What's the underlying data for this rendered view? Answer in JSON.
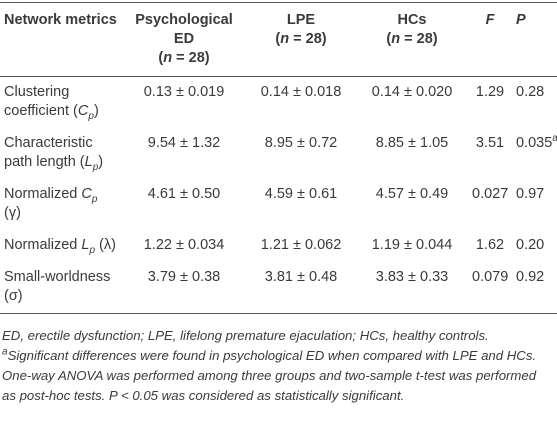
{
  "table": {
    "header": [
      [
        "Network metrics"
      ],
      [
        {
          "text": "Psychological ED",
          "block": true
        },
        "(",
        {
          "text": "n",
          "italic": true
        },
        " = 28)"
      ],
      [
        {
          "text": "LPE",
          "block": true
        },
        "(",
        {
          "text": "n",
          "italic": true
        },
        " = 28)"
      ],
      [
        {
          "text": "HCs",
          "block": true
        },
        "(",
        {
          "text": "n",
          "italic": true
        },
        " = 28)"
      ],
      [
        {
          "text": "F",
          "italic": true
        }
      ],
      [
        {
          "text": "P",
          "italic": true
        }
      ]
    ],
    "rows": [
      [
        [
          "Clustering coefficient (",
          {
            "text": "C",
            "italic": true
          },
          {
            "text": "p",
            "italic": true,
            "sub": true
          },
          ")"
        ],
        [
          "0.13 ± 0.019"
        ],
        [
          "0.14 ± 0.018"
        ],
        [
          "0.14 ± 0.020"
        ],
        [
          "1.29"
        ],
        [
          "0.28"
        ]
      ],
      [
        [
          "Characteristic path length (",
          {
            "text": "L",
            "italic": true
          },
          {
            "text": "p",
            "italic": true,
            "sub": true
          },
          ")"
        ],
        [
          "9.54 ± 1.32"
        ],
        [
          "8.95 ± 0.72"
        ],
        [
          "8.85 ± 1.05"
        ],
        [
          "3.51"
        ],
        [
          "0.035",
          {
            "text": "a",
            "sup": true
          }
        ]
      ],
      [
        [
          "Normalized ",
          {
            "text": "C",
            "italic": true
          },
          {
            "text": "p",
            "italic": true,
            "sub": true
          },
          " (γ)"
        ],
        [
          "4.61 ± 0.50"
        ],
        [
          "4.59 ± 0.61"
        ],
        [
          "4.57 ± 0.49"
        ],
        [
          "0.027"
        ],
        [
          "0.97"
        ]
      ],
      [
        [
          "Normalized ",
          {
            "text": "L",
            "italic": true
          },
          {
            "text": "p",
            "italic": true,
            "sub": true
          },
          " (λ)"
        ],
        [
          "1.22 ± 0.034"
        ],
        [
          "1.21 ± 0.062"
        ],
        [
          "1.19 ± 0.044"
        ],
        [
          "1.62"
        ],
        [
          "0.20"
        ]
      ],
      [
        [
          "Small-worldness (σ)"
        ],
        [
          "3.79 ± 0.38"
        ],
        [
          "3.81 ± 0.48"
        ],
        [
          "3.83 ± 0.33"
        ],
        [
          "0.079"
        ],
        [
          "0.92"
        ]
      ]
    ],
    "footnotes": [
      [
        "ED, erectile dysfunction; LPE, lifelong premature ejaculation; HCs, healthy controls."
      ],
      [
        {
          "text": "a",
          "sup": true
        },
        "Significant differences were found in psychological ED when compared with LPE and HCs. One-way ANOVA was performed among three groups and two-sample t-test was performed as post-hoc tests. P < 0.05 was considered as statistically significant."
      ]
    ]
  }
}
